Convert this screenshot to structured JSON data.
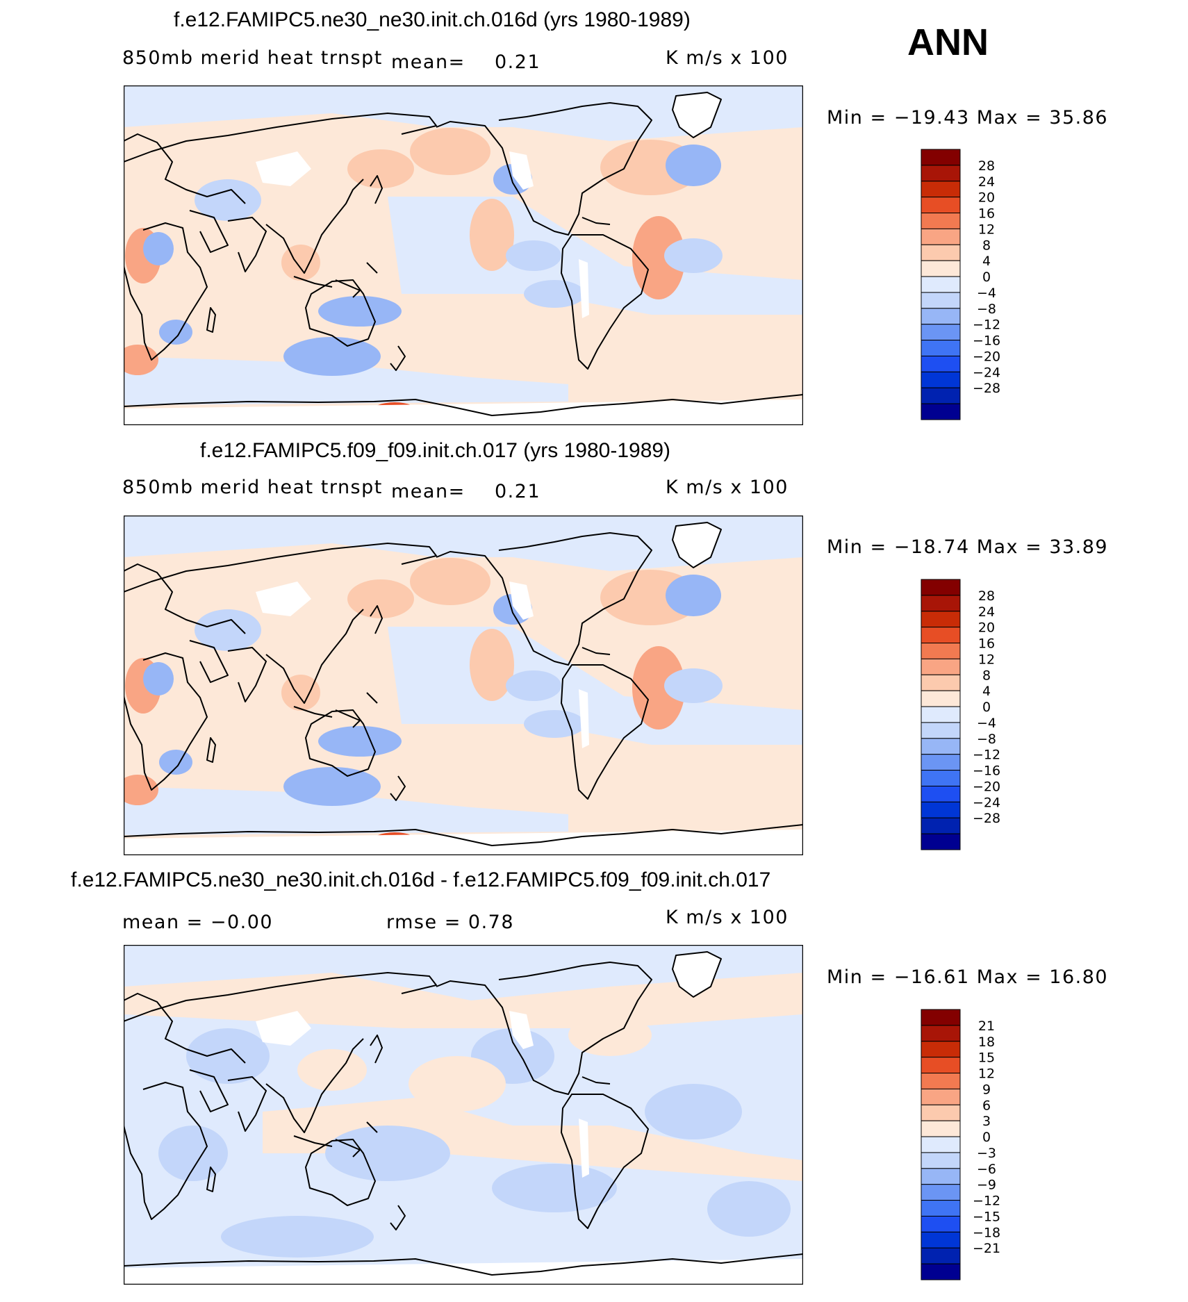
{
  "season": "ANN",
  "colors": {
    "ramp": [
      "#000091",
      "#0022b0",
      "#0036d6",
      "#1e4ff2",
      "#3f74f4",
      "#6b95f4",
      "#97b6f6",
      "#c3d6fa",
      "#dfeafd",
      "#fde8d8",
      "#fccaae",
      "#f9a584",
      "#f27a51",
      "#e74e25",
      "#c82c07",
      "#a81507",
      "#830000"
    ],
    "land_outline": "#000000"
  },
  "panels": [
    {
      "title": "f.e12.FAMIPC5.ne30_ne30.init.ch.016d (yrs 1980-1989)",
      "left_label": "850mb  merid  heat  trnspt",
      "mean_label": "mean=",
      "mean_value": "0.21",
      "units": "K  m/s  x  100",
      "min_max": "Min  =  −19.43  Max  =    35.86",
      "colorbar_labels": [
        "28",
        "24",
        "20",
        "16",
        "12",
        "8",
        "4",
        "0",
        "−4",
        "−8",
        "−12",
        "−16",
        "−20",
        "−24",
        "−28"
      ]
    },
    {
      "title": "f.e12.FAMIPC5.f09_f09.init.ch.017 (yrs 1980-1989)",
      "left_label": "850mb  merid  heat  trnspt",
      "mean_label": "mean=",
      "mean_value": "0.21",
      "units": "K  m/s  x  100",
      "min_max": "Min  =  −18.74  Max  =    33.89",
      "colorbar_labels": [
        "28",
        "24",
        "20",
        "16",
        "12",
        "8",
        "4",
        "0",
        "−4",
        "−8",
        "−12",
        "−16",
        "−20",
        "−24",
        "−28"
      ]
    },
    {
      "title": "f.e12.FAMIPC5.ne30_ne30.init.ch.016d - f.e12.FAMIPC5.f09_f09.init.ch.017",
      "mean_text": "mean  =    −0.00",
      "rmse_text": "rmse  =     0.78",
      "units": "K  m/s  x  100",
      "min_max": "Min  =  −16.61  Max  =    16.80",
      "colorbar_labels": [
        "21",
        "18",
        "15",
        "12",
        "9",
        "6",
        "3",
        "0",
        "−3",
        "−6",
        "−9",
        "−12",
        "−15",
        "−18",
        "−21"
      ]
    }
  ]
}
